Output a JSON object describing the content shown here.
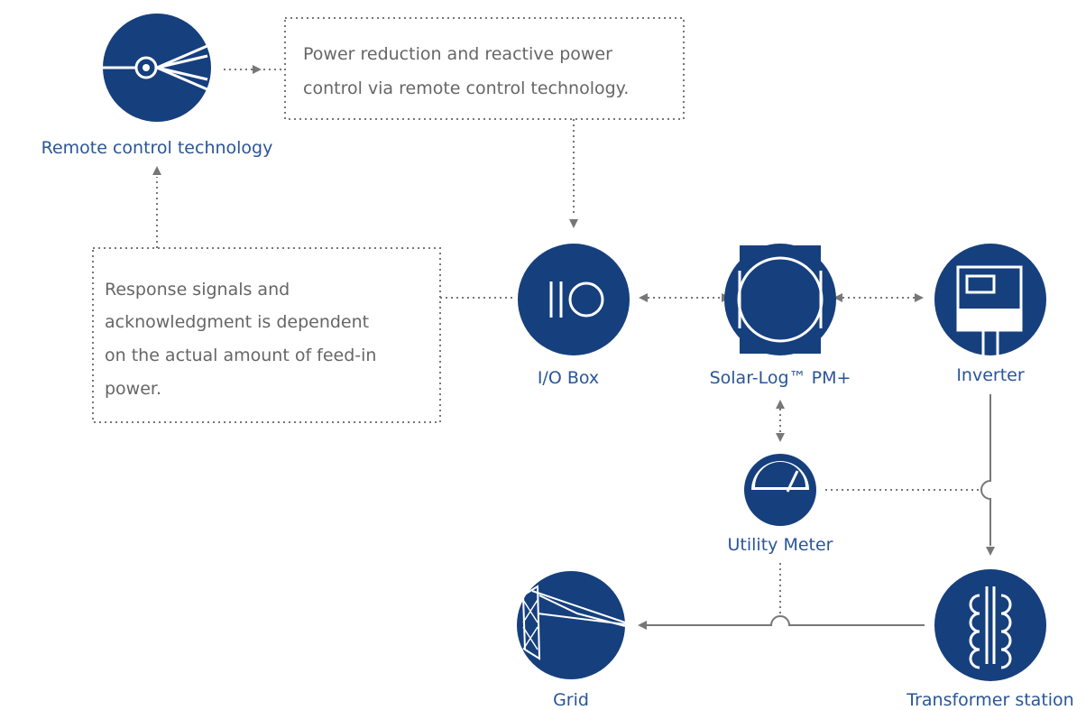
{
  "nodes": [
    {
      "label": "Remote control technology"
    },
    {
      "label": "I/O Box"
    },
    {
      "label": "Solar-Log™ PM+"
    },
    {
      "label": "Inverter"
    },
    {
      "label": "Utility Meter"
    },
    {
      "label": "Grid"
    },
    {
      "label": "Transformer station"
    }
  ],
  "notes": [
    {
      "lines": [
        "Power reduction and reactive power",
        "control via remote control technology."
      ]
    },
    {
      "lines": [
        "Response signals and",
        "acknowledgment is dependent",
        "on the actual amount of feed-in",
        "power."
      ]
    }
  ]
}
